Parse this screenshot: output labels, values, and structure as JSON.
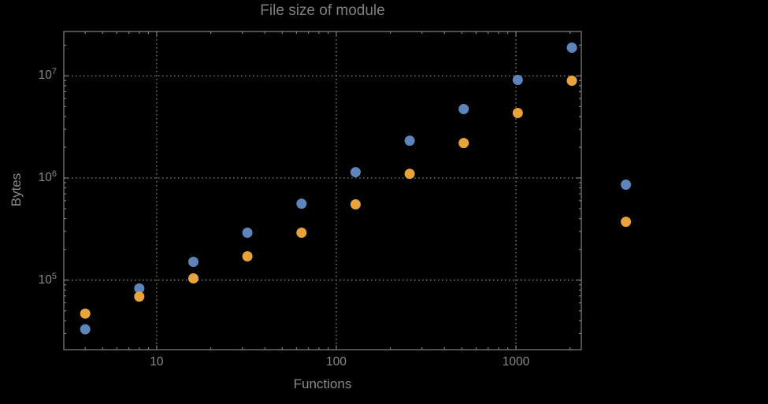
{
  "title": "File size of module",
  "chart_data": {
    "type": "scatter",
    "title": "File size of module",
    "xlabel": "Functions",
    "ylabel": "Bytes",
    "xscale": "log",
    "yscale": "log",
    "xlim": [
      3.04,
      2312
    ],
    "ylim": [
      20850,
      27200000
    ],
    "grid": "dotted-major",
    "legend": "none",
    "x_ticks": {
      "major": [
        10,
        100,
        1000
      ],
      "labels": [
        "10",
        "100",
        "1000"
      ]
    },
    "y_ticks": {
      "major": [
        100000,
        1000000,
        10000000
      ],
      "label_base": "10",
      "label_exponents": [
        "5",
        "6",
        "7"
      ]
    },
    "x": [
      4,
      8,
      16,
      32,
      64,
      128,
      256,
      512,
      1024,
      2048,
      4096
    ],
    "series": [
      {
        "name": "blue-series",
        "color": "#5E84BC",
        "values": [
          33000,
          83000,
          151000,
          291000,
          561000,
          1140000,
          2320000,
          4730000,
          9120000,
          18900000,
          860000
        ]
      },
      {
        "name": "orange-series",
        "color": "#E8A33C",
        "values": [
          47000,
          69000,
          104000,
          171000,
          291000,
          552000,
          1100000,
          2200000,
          4330000,
          8960000,
          373000
        ]
      }
    ]
  },
  "style": {
    "background": "#000000",
    "frame_color": "#848484",
    "grid_color": "#828282",
    "text_color": "#8a8a8a",
    "title_color": "#7f7f7f",
    "point_radius": 6.5
  }
}
